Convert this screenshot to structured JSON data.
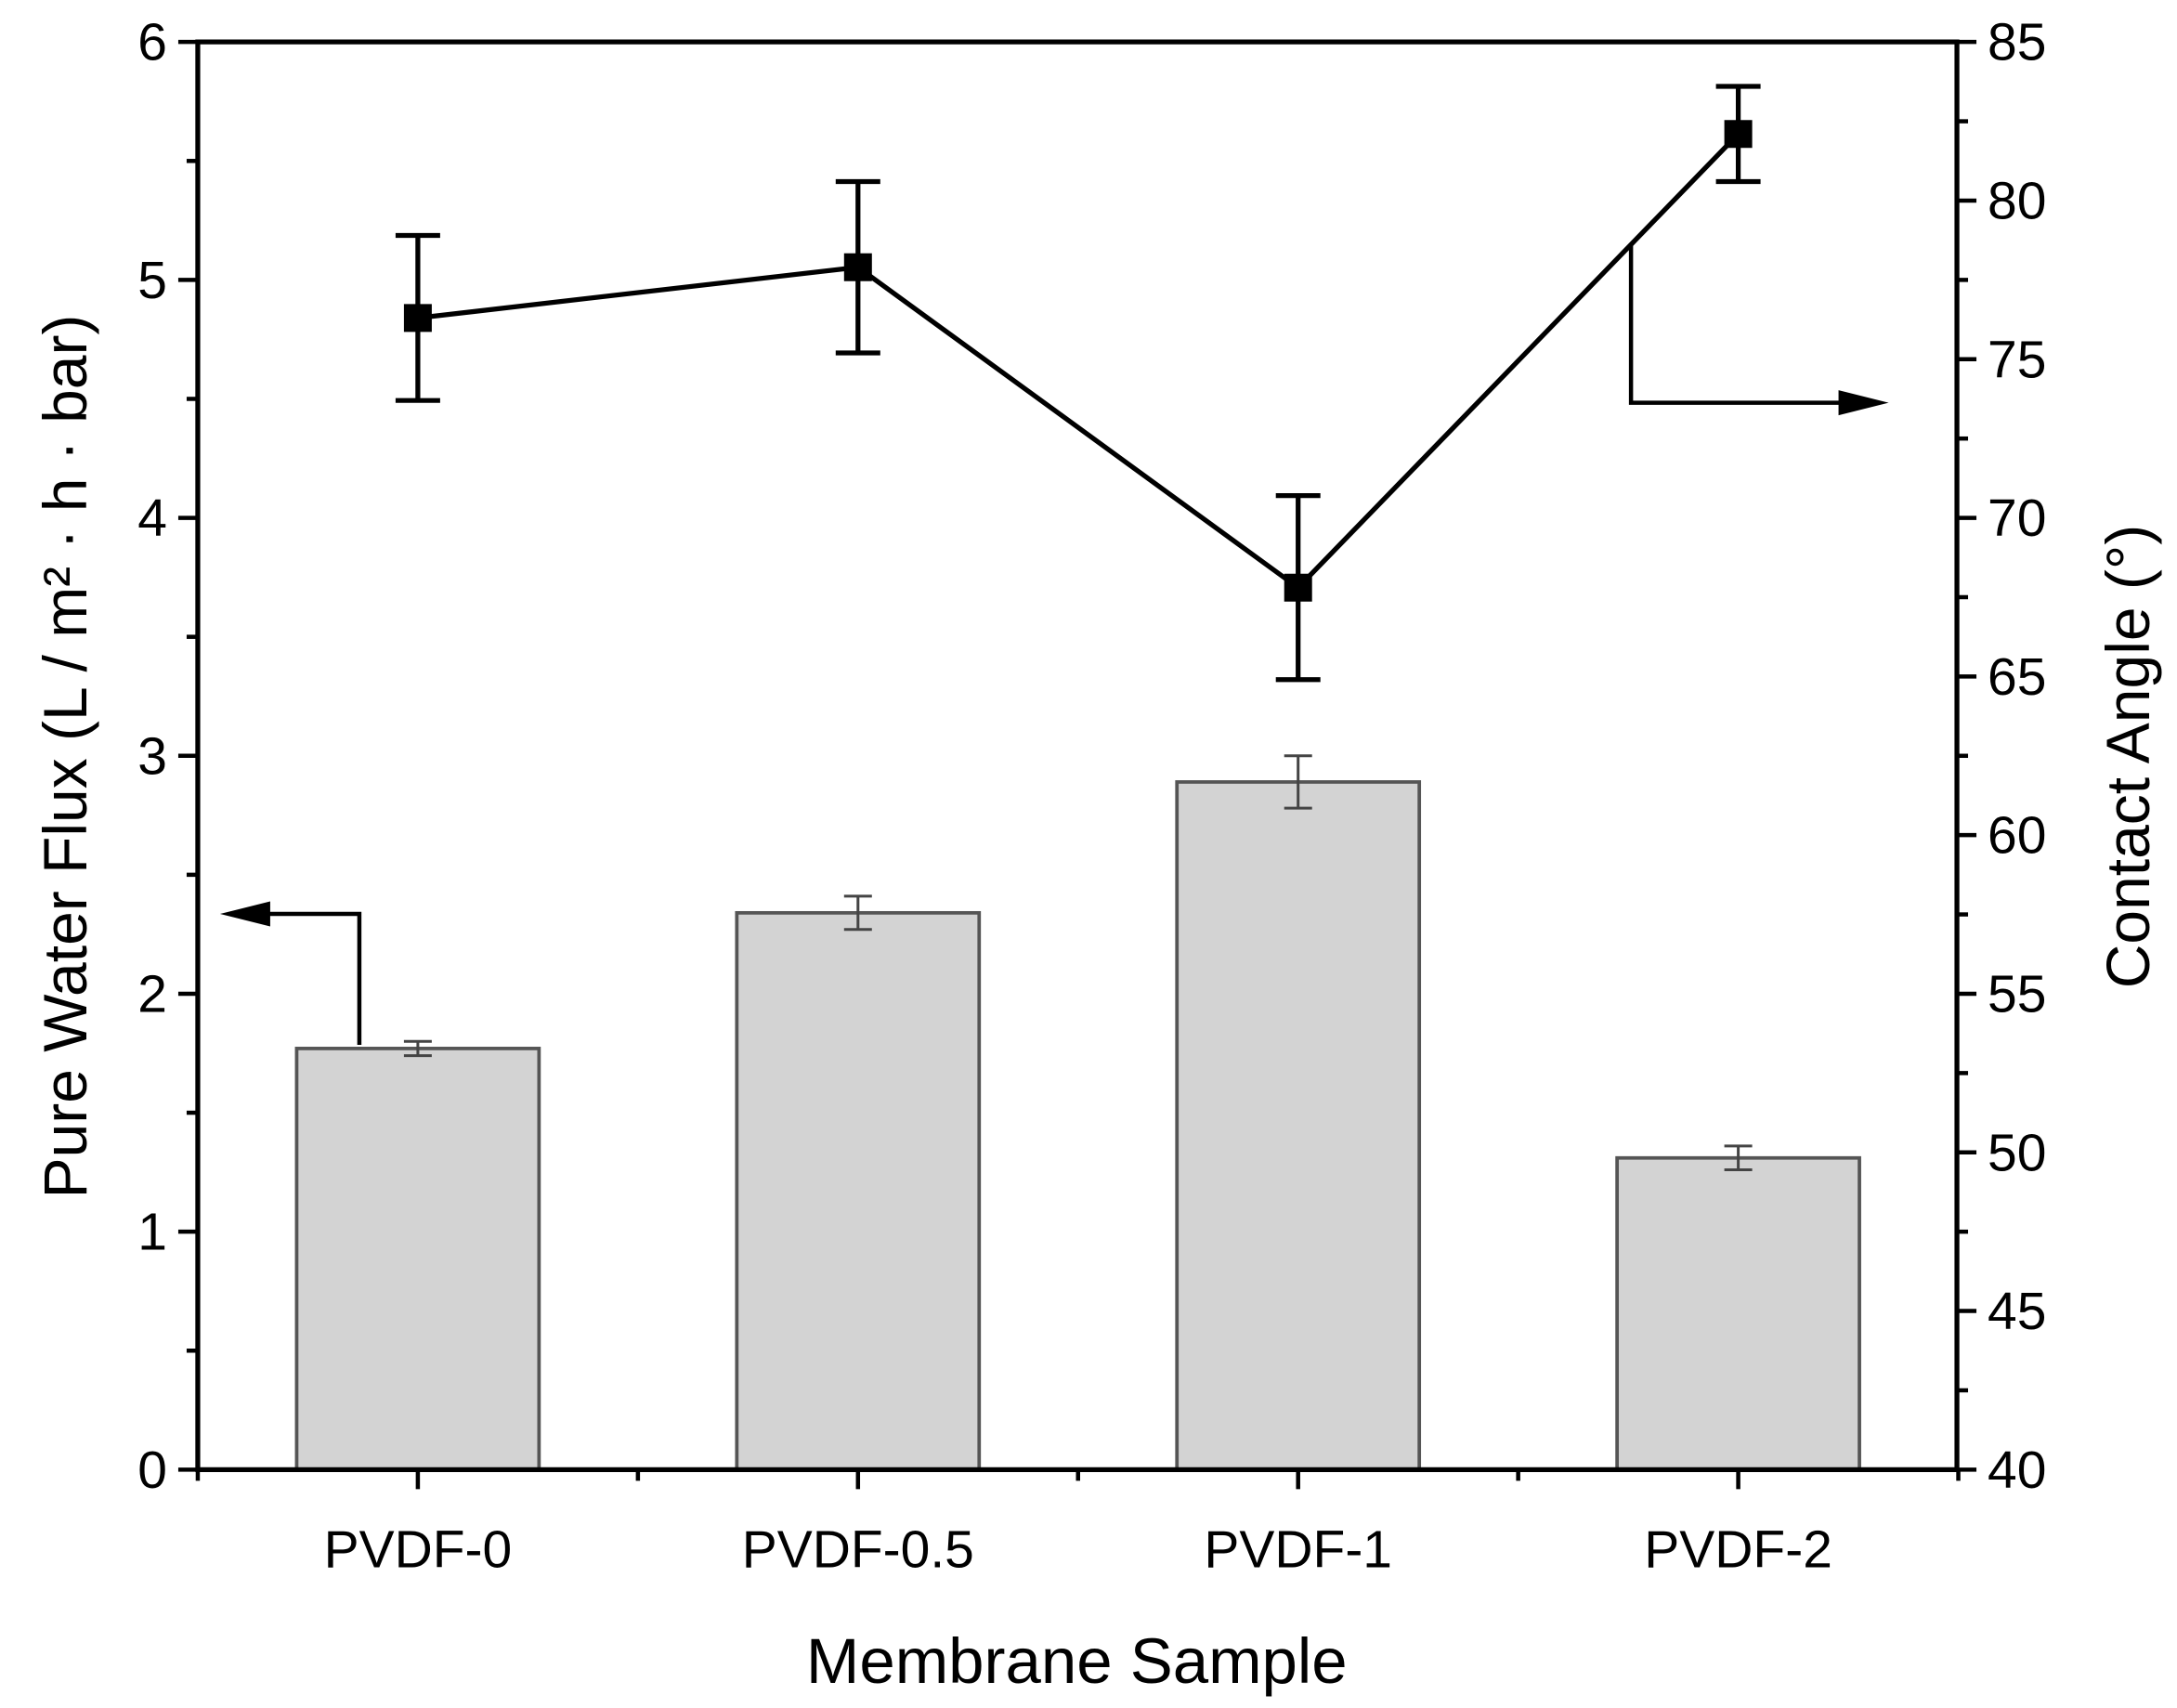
{
  "chart_data": {
    "type": "bar+line",
    "xlabel": "Membrane Sample",
    "categories": [
      "PVDF-0",
      "PVDF-0.5",
      "PVDF-1",
      "PVDF-2"
    ],
    "ylabel_left": "Pure Water Flux (L / m² · h · bar)",
    "ylabel_right": "Contact Angle (°)",
    "ylim_left": [
      0,
      6
    ],
    "ylim_right": [
      40,
      85
    ],
    "yticks_left": [
      "0",
      "1",
      "2",
      "3",
      "4",
      "5",
      "6"
    ],
    "yticks_right": [
      "40",
      "45",
      "50",
      "55",
      "60",
      "65",
      "70",
      "75",
      "80",
      "85"
    ],
    "series": [
      {
        "name": "Pure Water Flux",
        "type": "bar",
        "axis": "left",
        "values": [
          1.77,
          2.34,
          2.89,
          1.31
        ],
        "errors": [
          0.03,
          0.07,
          0.11,
          0.05
        ],
        "color": "#d3d3d3"
      },
      {
        "name": "Contact Angle",
        "type": "line",
        "axis": "right",
        "values": [
          76.3,
          77.9,
          67.8,
          82.1
        ],
        "errors": [
          2.6,
          2.7,
          2.9,
          1.5
        ],
        "color": "#000000"
      }
    ],
    "grid": false
  }
}
